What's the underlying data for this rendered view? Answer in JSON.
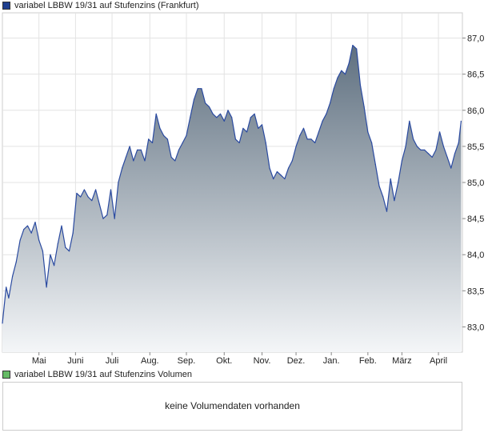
{
  "price_legend": {
    "label": "variabel LBBW 19/31 auf Stufenzins (Frankfurt)",
    "color": "#1f3f8f"
  },
  "volume_legend": {
    "label": "variabel LBBW 19/31 auf Stufenzins Volumen",
    "color": "#66bb66"
  },
  "volume": {
    "message": "keine Volumendaten vorhanden"
  },
  "chart_data": {
    "type": "area",
    "line_color": "#2a4aa0",
    "fill_top": "#5f7080",
    "fill_bottom": "#f4f6f8",
    "grid": true,
    "ylim": [
      82.65,
      87.35
    ],
    "yticks": [
      83.0,
      83.5,
      84.0,
      84.5,
      85.0,
      85.5,
      86.0,
      86.5,
      87.0
    ],
    "ytick_labels": [
      "83,0",
      "83,5",
      "84,0",
      "84,5",
      "85,0",
      "85,5",
      "86,0",
      "86,5",
      "87,0"
    ],
    "xlim": [
      0,
      365
    ],
    "xticks": [
      {
        "label": "Mai",
        "day": 29
      },
      {
        "label": "Juni",
        "day": 58
      },
      {
        "label": "Juli",
        "day": 87
      },
      {
        "label": "Aug.",
        "day": 117
      },
      {
        "label": "Sep.",
        "day": 146
      },
      {
        "label": "Okt.",
        "day": 176
      },
      {
        "label": "Nov.",
        "day": 206
      },
      {
        "label": "Dez.",
        "day": 233
      },
      {
        "label": "Jan.",
        "day": 261
      },
      {
        "label": "Feb.",
        "day": 290
      },
      {
        "label": "März",
        "day": 317
      },
      {
        "label": "April",
        "day": 346
      }
    ],
    "x": [
      0,
      3,
      5,
      8,
      11,
      14,
      17,
      20,
      23,
      26,
      29,
      32,
      35,
      38,
      41,
      44,
      47,
      50,
      53,
      56,
      59,
      62,
      65,
      68,
      71,
      74,
      77,
      80,
      83,
      86,
      89,
      92,
      95,
      98,
      101,
      104,
      107,
      110,
      113,
      116,
      119,
      122,
      125,
      128,
      131,
      134,
      137,
      140,
      143,
      146,
      149,
      152,
      155,
      158,
      161,
      164,
      167,
      170,
      173,
      176,
      179,
      182,
      185,
      188,
      191,
      194,
      197,
      200,
      203,
      206,
      209,
      212,
      215,
      218,
      221,
      224,
      227,
      230,
      233,
      236,
      239,
      242,
      245,
      248,
      251,
      254,
      257,
      260,
      263,
      266,
      269,
      272,
      275,
      278,
      281,
      284,
      287,
      290,
      293,
      296,
      299,
      302,
      305,
      308,
      311,
      314,
      317,
      320,
      323,
      326,
      329,
      332,
      335,
      338,
      341,
      344,
      347,
      350,
      353,
      356,
      359,
      362,
      364
    ],
    "y": [
      83.05,
      83.55,
      83.4,
      83.7,
      83.9,
      84.2,
      84.35,
      84.4,
      84.3,
      84.45,
      84.2,
      84.05,
      83.55,
      84.0,
      83.85,
      84.15,
      84.4,
      84.1,
      84.05,
      84.3,
      84.85,
      84.8,
      84.9,
      84.8,
      84.75,
      84.9,
      84.7,
      84.5,
      84.55,
      84.9,
      84.5,
      85.0,
      85.2,
      85.35,
      85.5,
      85.3,
      85.45,
      85.45,
      85.3,
      85.6,
      85.55,
      85.95,
      85.75,
      85.65,
      85.6,
      85.35,
      85.3,
      85.45,
      85.55,
      85.65,
      85.9,
      86.15,
      86.3,
      86.3,
      86.1,
      86.05,
      85.95,
      85.9,
      85.95,
      85.85,
      86.0,
      85.9,
      85.6,
      85.55,
      85.75,
      85.7,
      85.9,
      85.95,
      85.75,
      85.8,
      85.55,
      85.2,
      85.05,
      85.15,
      85.1,
      85.05,
      85.2,
      85.3,
      85.5,
      85.65,
      85.75,
      85.6,
      85.6,
      85.55,
      85.7,
      85.85,
      85.95,
      86.1,
      86.3,
      86.45,
      86.55,
      86.5,
      86.65,
      86.9,
      86.85,
      86.35,
      86.05,
      85.7,
      85.55,
      85.25,
      84.95,
      84.8,
      84.6,
      85.05,
      84.75,
      85.0,
      85.3,
      85.5,
      85.85,
      85.6,
      85.5,
      85.45,
      85.45,
      85.4,
      85.35,
      85.45,
      85.7,
      85.5,
      85.35,
      85.2,
      85.4,
      85.55,
      85.85
    ]
  }
}
